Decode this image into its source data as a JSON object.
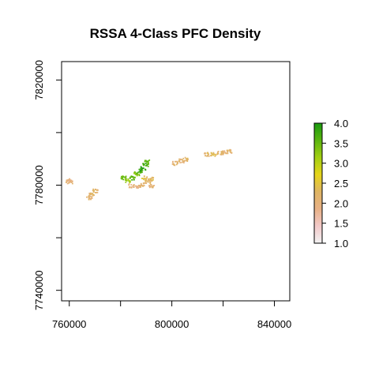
{
  "chart_data": {
    "type": "heatmap",
    "title": "RSSA 4-Class PFC Density",
    "xlabel": "",
    "ylabel": "",
    "xlim": [
      757000,
      846000
    ],
    "ylim": [
      7736000,
      7827000
    ],
    "x_ticks": [
      760000,
      780000,
      800000,
      820000,
      840000
    ],
    "x_tick_labels": [
      "760000",
      "",
      "800000",
      "",
      "840000"
    ],
    "y_ticks": [
      7740000,
      7760000,
      7780000,
      7800000,
      7820000
    ],
    "y_tick_labels": [
      "7740000",
      "",
      "7780000",
      "",
      "7820000"
    ],
    "legend": {
      "placement": "right",
      "min": 1.0,
      "max": 4.0,
      "labels": [
        "1.0",
        "1.5",
        "2.0",
        "2.5",
        "3.0",
        "3.5",
        "4.0"
      ],
      "colors": [
        "#f2f2f2",
        "#f2c9c9",
        "#e8b186",
        "#dfb563",
        "#e6d51a",
        "#a3cf12",
        "#5bb50f",
        "#1a9a0f"
      ]
    },
    "patches": [
      {
        "x": 759500,
        "y": 7782000,
        "value": 2.0
      },
      {
        "x": 760000,
        "y": 7781500,
        "value": 2.0
      },
      {
        "x": 770000,
        "y": 7778000,
        "value": 2.2
      },
      {
        "x": 768500,
        "y": 7776500,
        "value": 2.2
      },
      {
        "x": 767500,
        "y": 7775500,
        "value": 2.1
      },
      {
        "x": 781000,
        "y": 7783000,
        "value": 3.5
      },
      {
        "x": 782500,
        "y": 7782000,
        "value": 3.2
      },
      {
        "x": 784500,
        "y": 7783000,
        "value": 3.6
      },
      {
        "x": 786000,
        "y": 7784500,
        "value": 3.4
      },
      {
        "x": 787500,
        "y": 7785500,
        "value": 3.8
      },
      {
        "x": 788500,
        "y": 7786500,
        "value": 3.9
      },
      {
        "x": 789500,
        "y": 7788000,
        "value": 3.7
      },
      {
        "x": 790000,
        "y": 7789000,
        "value": 3.6
      },
      {
        "x": 789000,
        "y": 7783000,
        "value": 2.4
      },
      {
        "x": 790500,
        "y": 7781500,
        "value": 2.2
      },
      {
        "x": 791500,
        "y": 7782500,
        "value": 2.3
      },
      {
        "x": 788500,
        "y": 7780500,
        "value": 2.1
      },
      {
        "x": 786500,
        "y": 7779500,
        "value": 2.0
      },
      {
        "x": 792000,
        "y": 7780000,
        "value": 2.1
      },
      {
        "x": 784000,
        "y": 7780000,
        "value": 2.0
      },
      {
        "x": 801000,
        "y": 7788500,
        "value": 2.1
      },
      {
        "x": 803500,
        "y": 7789500,
        "value": 2.1
      },
      {
        "x": 805000,
        "y": 7790000,
        "value": 2.2
      },
      {
        "x": 813500,
        "y": 7792000,
        "value": 2.2
      },
      {
        "x": 816000,
        "y": 7792000,
        "value": 2.3
      },
      {
        "x": 818500,
        "y": 7792500,
        "value": 2.2
      },
      {
        "x": 820500,
        "y": 7792500,
        "value": 2.1
      },
      {
        "x": 822000,
        "y": 7793000,
        "value": 2.2
      }
    ]
  }
}
